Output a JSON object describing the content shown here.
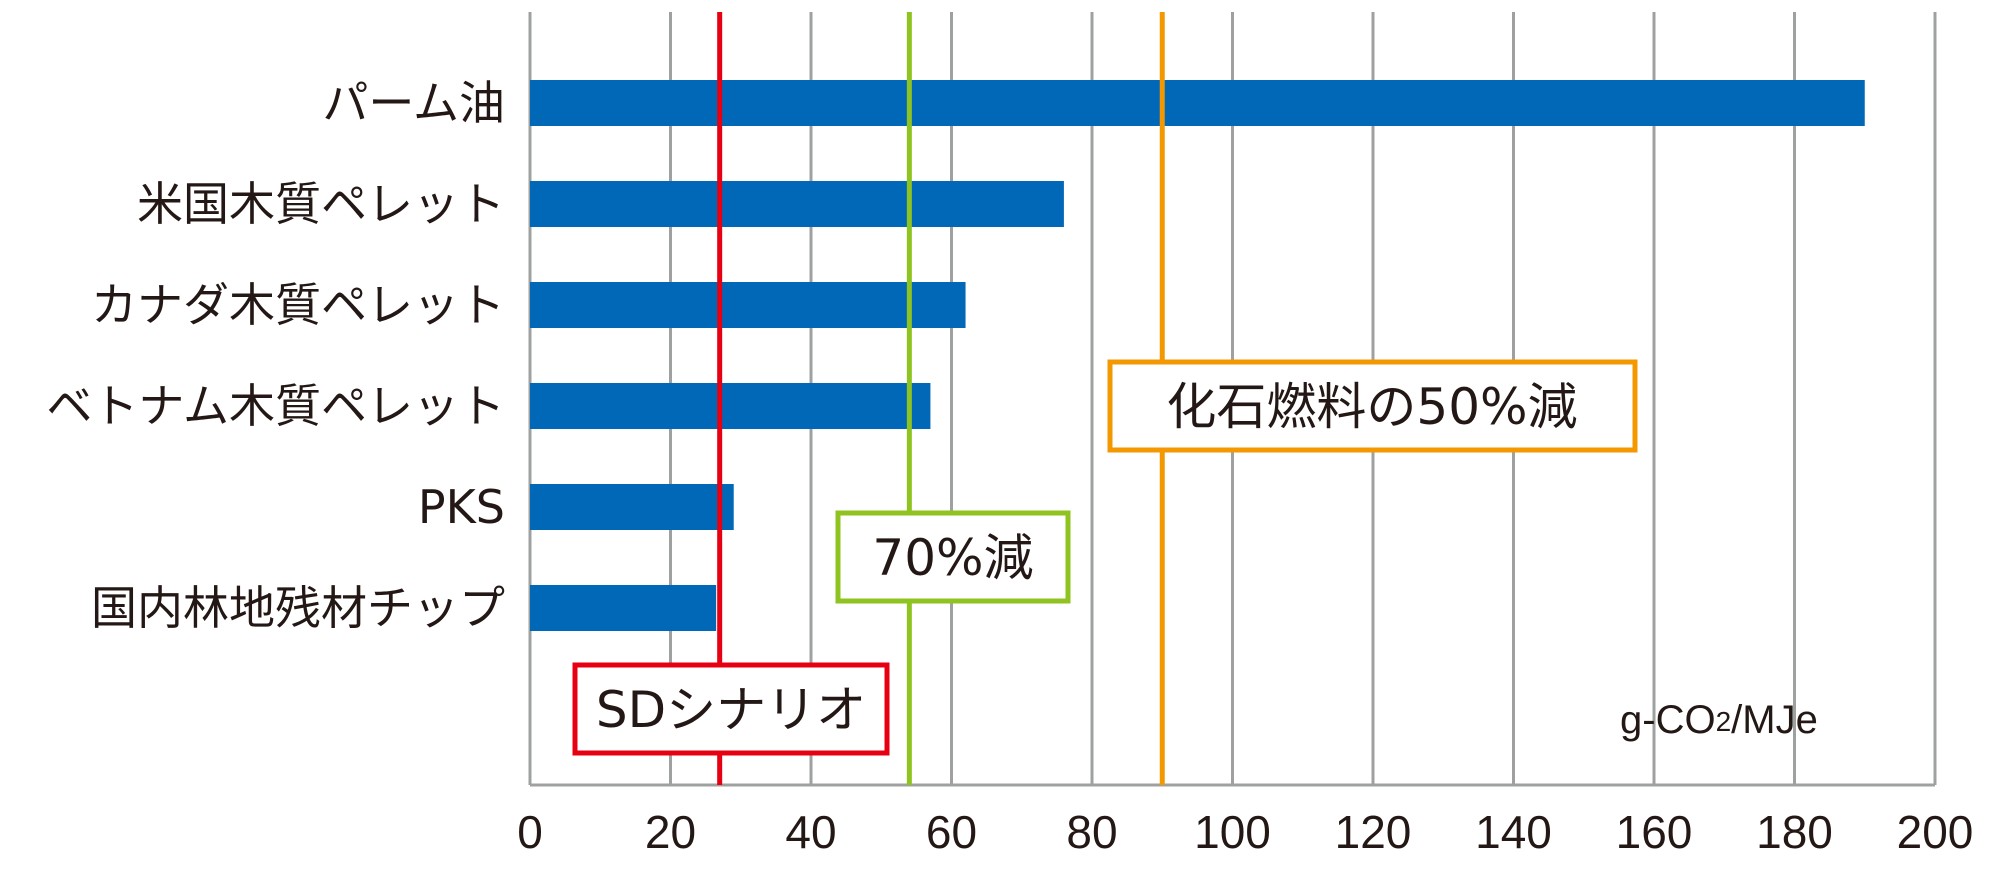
{
  "chart_data": {
    "type": "bar",
    "orientation": "horizontal",
    "categories": [
      "パーム油",
      "米国木質ペレット",
      "カナダ木質ペレット",
      "ベトナム木質ペレット",
      "PKS",
      "国内林地残材チップ"
    ],
    "values": [
      190,
      76,
      62,
      57,
      29,
      26.5
    ],
    "bar_color": "#0068b7",
    "xlim": [
      0,
      200
    ],
    "xticks": [
      0,
      20,
      40,
      60,
      80,
      100,
      120,
      140,
      160,
      180,
      200
    ],
    "xtick_labels": [
      "0",
      "20",
      "40",
      "60",
      "80",
      "100",
      "120",
      "140",
      "160",
      "180",
      "200"
    ],
    "unit_label": "g-CO",
    "unit_sub": "2",
    "unit_suffix": "/MJe",
    "grid": true,
    "grid_color": "#9fa0a0",
    "reference_lines": [
      {
        "label": "SDシナリオ",
        "value": 27,
        "color": "#e60012"
      },
      {
        "label": "70%減",
        "value": 54,
        "color": "#8fc31f"
      },
      {
        "label": "化石燃料の50%減",
        "value": 90,
        "color": "#f39800"
      }
    ]
  }
}
